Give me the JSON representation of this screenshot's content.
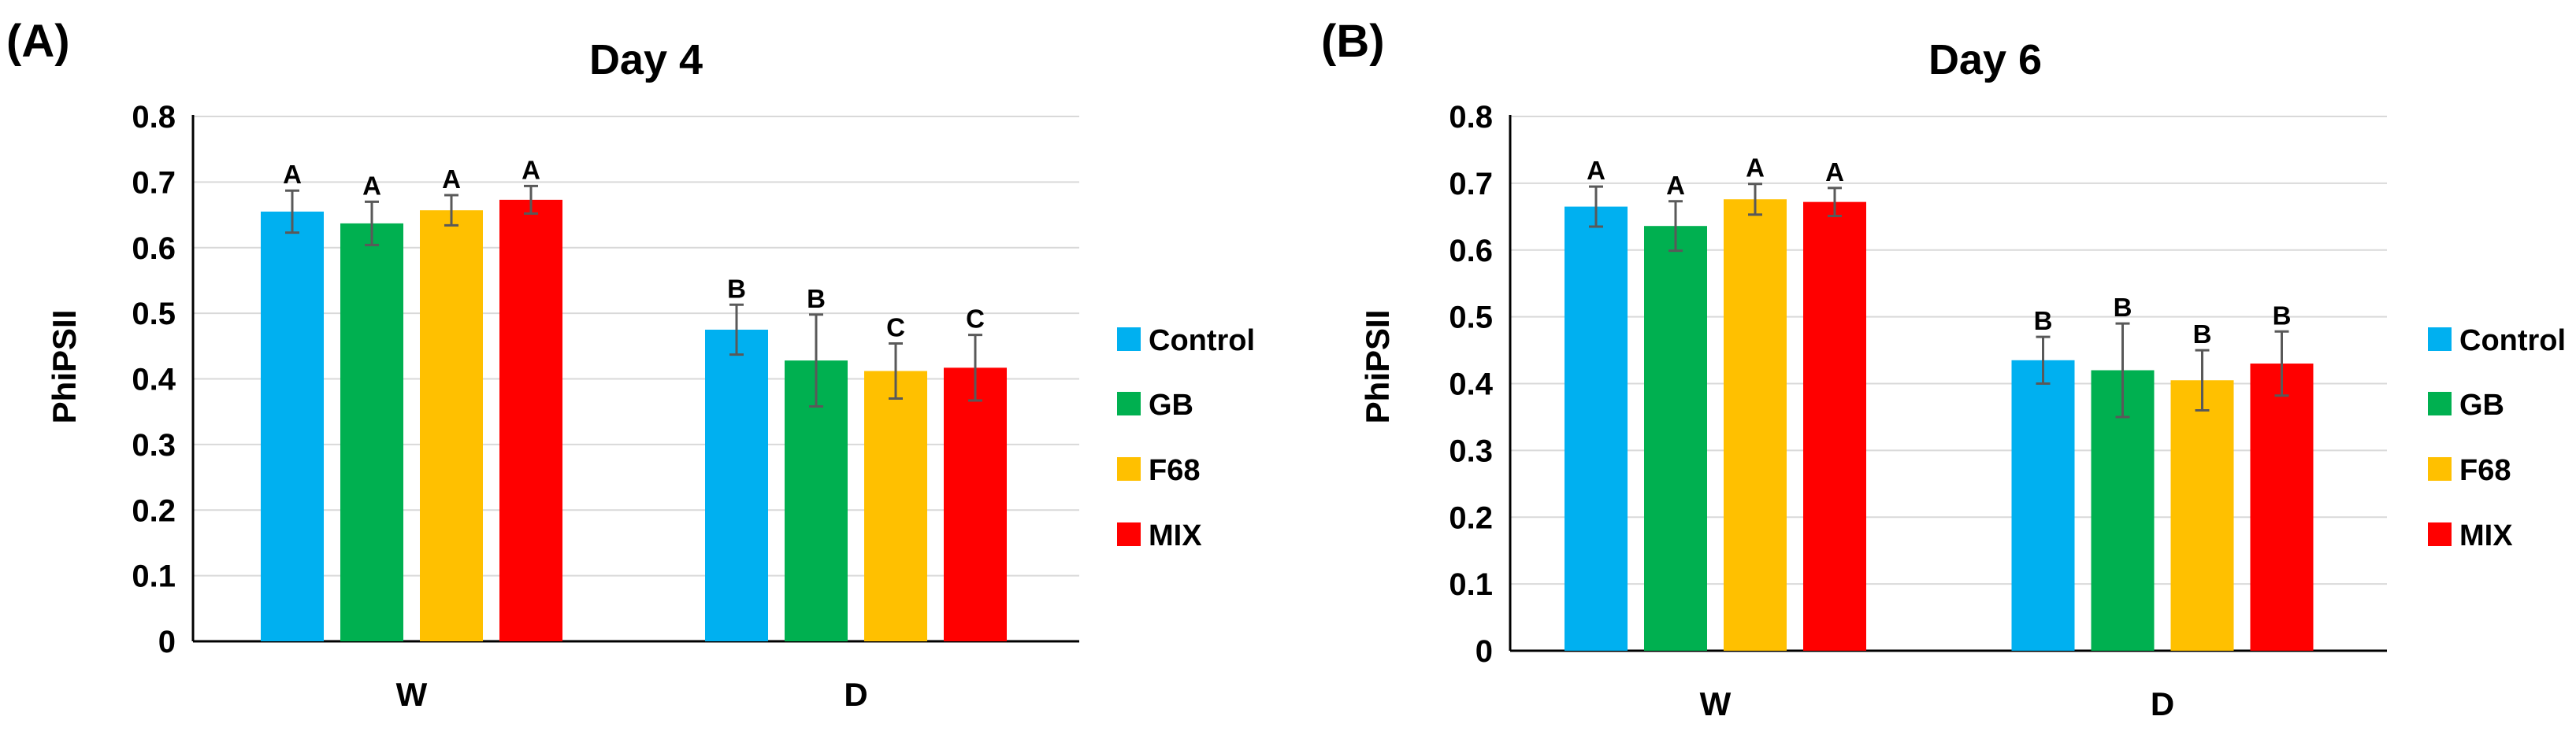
{
  "chart_data": [
    {
      "type": "bar",
      "panel_label": "(A)",
      "title": "Day 4",
      "xlabel": "",
      "ylabel": "PhiPSII",
      "ylim": [
        0,
        0.8
      ],
      "yticks": [
        "0",
        "0.1",
        "0.2",
        "0.3",
        "0.4",
        "0.5",
        "0.6",
        "0.7",
        "0.8"
      ],
      "grid": true,
      "legend_position": "right",
      "categories": [
        "W",
        "D"
      ],
      "series": [
        {
          "name": "Control",
          "color": "#00B0F0",
          "values": [
            0.655,
            0.475
          ],
          "errors": [
            0.032,
            0.038
          ],
          "letters": [
            "A",
            "B"
          ]
        },
        {
          "name": "GB",
          "color": "#00B050",
          "values": [
            0.637,
            0.428
          ],
          "errors": [
            0.033,
            0.07
          ],
          "letters": [
            "A",
            "B"
          ]
        },
        {
          "name": "F68",
          "color": "#FFC000",
          "values": [
            0.657,
            0.412
          ],
          "errors": [
            0.023,
            0.042
          ],
          "letters": [
            "A",
            "C"
          ]
        },
        {
          "name": "MIX",
          "color": "#FF0000",
          "values": [
            0.673,
            0.417
          ],
          "errors": [
            0.021,
            0.05
          ],
          "letters": [
            "A",
            "C"
          ]
        }
      ]
    },
    {
      "type": "bar",
      "panel_label": "(B)",
      "title": "Day 6",
      "xlabel": "",
      "ylabel": "PhiPSII",
      "ylim": [
        0,
        0.8
      ],
      "yticks": [
        "0",
        "0.1",
        "0.2",
        "0.3",
        "0.4",
        "0.5",
        "0.6",
        "0.7",
        "0.8"
      ],
      "grid": true,
      "legend_position": "right",
      "categories": [
        "W",
        "D"
      ],
      "series": [
        {
          "name": "Control",
          "color": "#00B0F0",
          "values": [
            0.665,
            0.435
          ],
          "errors": [
            0.03,
            0.035
          ],
          "letters": [
            "A",
            "B"
          ]
        },
        {
          "name": "GB",
          "color": "#00B050",
          "values": [
            0.636,
            0.42
          ],
          "errors": [
            0.037,
            0.07
          ],
          "letters": [
            "A",
            "B"
          ]
        },
        {
          "name": "F68",
          "color": "#FFC000",
          "values": [
            0.676,
            0.405
          ],
          "errors": [
            0.023,
            0.045
          ],
          "letters": [
            "A",
            "B"
          ]
        },
        {
          "name": "MIX",
          "color": "#FF0000",
          "values": [
            0.672,
            0.43
          ],
          "errors": [
            0.021,
            0.048
          ],
          "letters": [
            "A",
            "B"
          ]
        }
      ]
    }
  ]
}
